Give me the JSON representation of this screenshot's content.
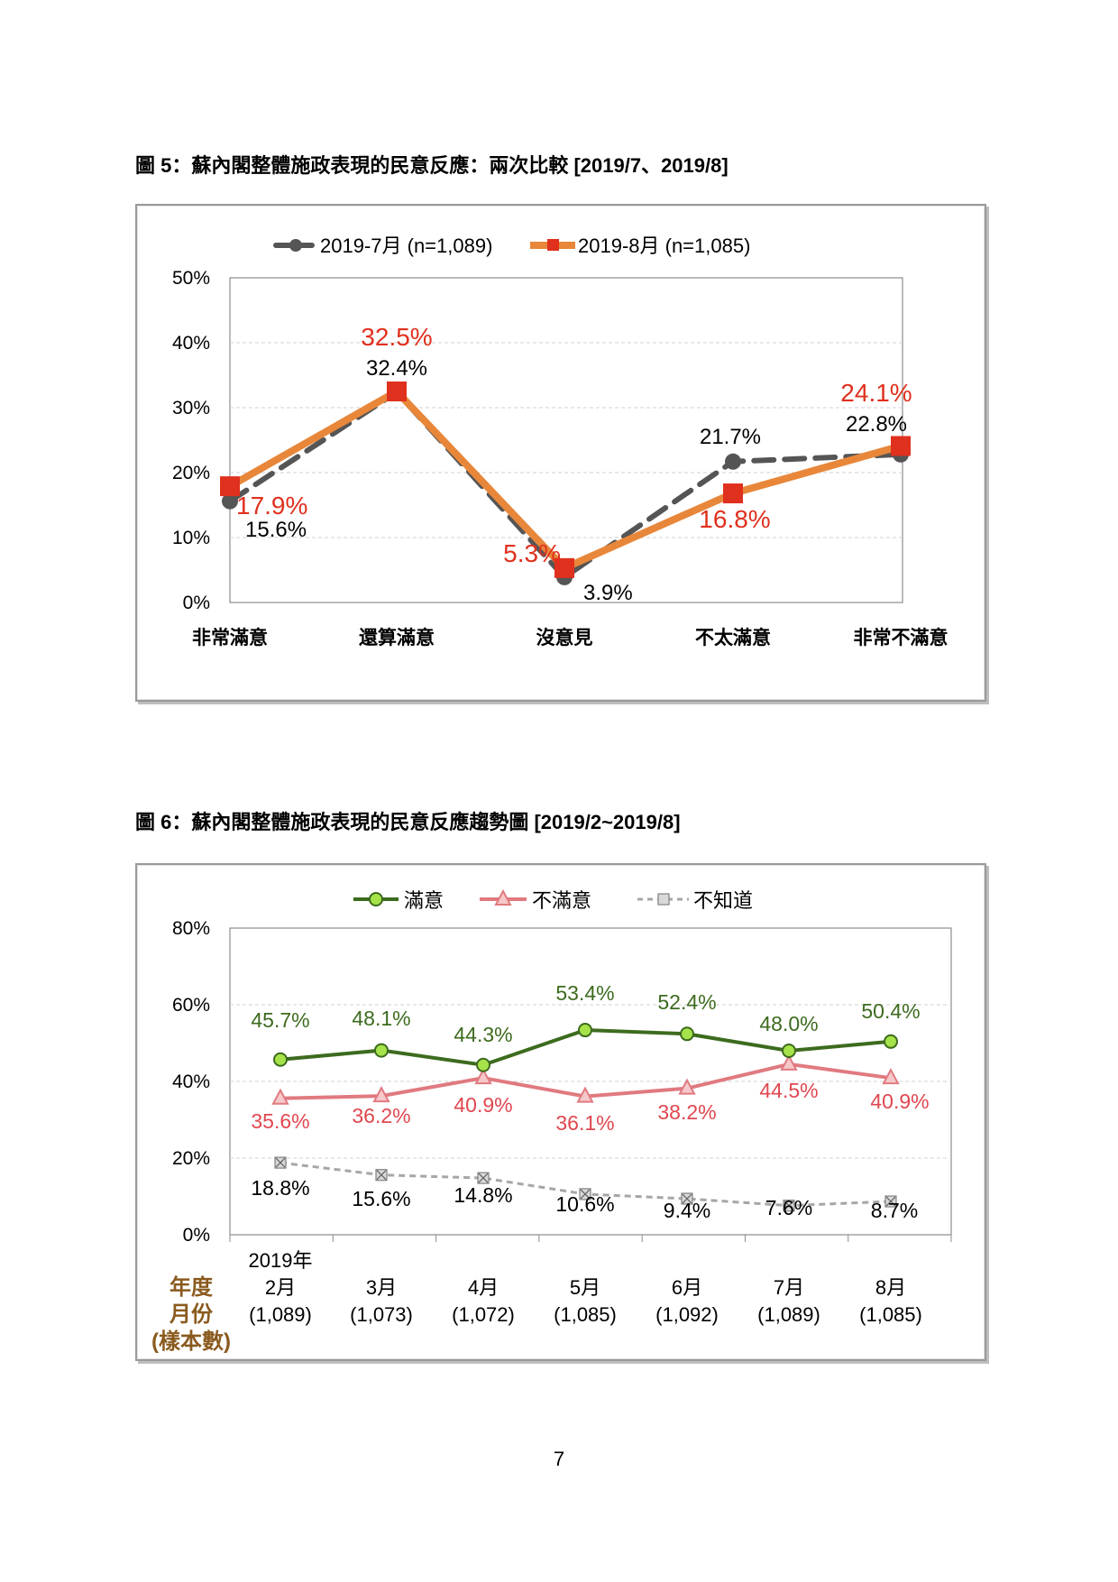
{
  "page_number": "7",
  "chart_data": [
    {
      "type": "line",
      "title": "圖 5：蘇內閣整體施政表現的民意反應：兩次比較  [2019/7、2019/8]",
      "categories": [
        "非常滿意",
        "還算滿意",
        "沒意見",
        "不太滿意",
        "非常不滿意"
      ],
      "ylim": [
        0,
        50
      ],
      "yticks": [
        "0%",
        "10%",
        "20%",
        "30%",
        "40%",
        "50%"
      ],
      "grid": true,
      "legend_position": "top",
      "series": [
        {
          "name": "2019-7月 (n=1,089)",
          "values": [
            15.6,
            32.4,
            3.9,
            21.7,
            22.8
          ],
          "labels": [
            "15.6%",
            "32.4%",
            "3.9%",
            "21.7%",
            "22.8%"
          ],
          "color": "#555555",
          "style": "dashed",
          "marker": "circle"
        },
        {
          "name": "2019-8月 (n=1,085)",
          "values": [
            17.9,
            32.5,
            5.3,
            16.8,
            24.1
          ],
          "labels": [
            "17.9%",
            "32.5%",
            "5.3%",
            "16.8%",
            "24.1%"
          ],
          "color": "#e8873a",
          "marker_color": "#e0301e",
          "style": "solid",
          "marker": "square"
        }
      ]
    },
    {
      "type": "line",
      "title": "圖 6：蘇內閣整體施政表現的民意反應趨勢圖  [2019/2~2019/8]",
      "axis_title": [
        "年度",
        "月份",
        "(樣本數)"
      ],
      "categories": [
        [
          "2019年",
          "2月",
          "(1,089)"
        ],
        [
          "",
          "3月",
          "(1,073)"
        ],
        [
          "",
          "4月",
          "(1,072)"
        ],
        [
          "",
          "5月",
          "(1,085)"
        ],
        [
          "",
          "6月",
          "(1,092)"
        ],
        [
          "",
          "7月",
          "(1,089)"
        ],
        [
          "",
          "8月",
          "(1,085)"
        ]
      ],
      "ylim": [
        0,
        80
      ],
      "yticks": [
        "0%",
        "20%",
        "40%",
        "60%",
        "80%"
      ],
      "grid": true,
      "legend_position": "top",
      "series": [
        {
          "name": "滿意",
          "values": [
            45.7,
            48.1,
            44.3,
            53.4,
            52.4,
            48.0,
            50.4
          ],
          "labels": [
            "45.7%",
            "48.1%",
            "44.3%",
            "53.4%",
            "52.4%",
            "48.0%",
            "50.4%"
          ],
          "color": "#3d6b1e",
          "marker_fill": "#a6e34a",
          "marker": "circle"
        },
        {
          "name": "不滿意",
          "values": [
            35.6,
            36.2,
            40.9,
            36.1,
            38.2,
            44.5,
            40.9
          ],
          "labels": [
            "35.6%",
            "36.2%",
            "40.9%",
            "36.1%",
            "38.2%",
            "44.5%",
            "40.9%"
          ],
          "color": "#e07a80",
          "marker_fill": "#f6c8ca",
          "marker": "triangle"
        },
        {
          "name": "不知道",
          "values": [
            18.8,
            15.6,
            14.8,
            10.6,
            9.4,
            7.6,
            8.7
          ],
          "labels": [
            "18.8%",
            "15.6%",
            "14.8%",
            "10.6%",
            "9.4%",
            "7.6%",
            "8.7%"
          ],
          "color": "#a6a6a6",
          "marker": "x-square",
          "style": "dashed"
        }
      ]
    }
  ]
}
